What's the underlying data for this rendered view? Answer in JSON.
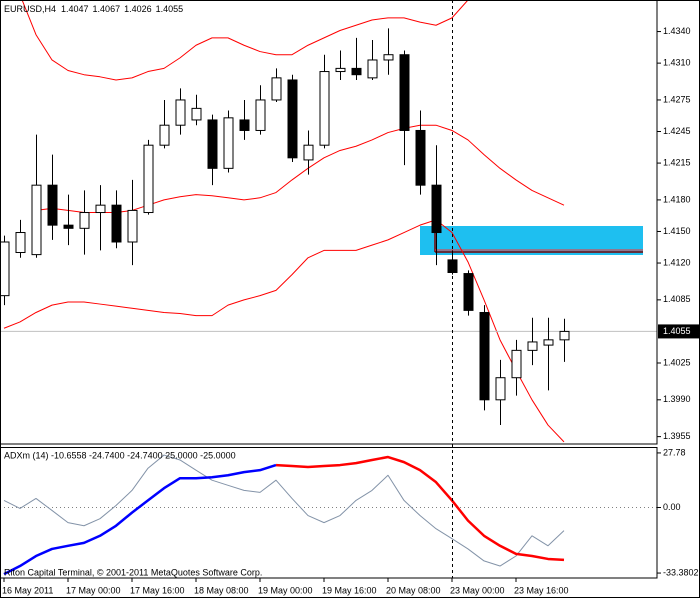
{
  "chart_data": [
    {
      "type": "candlestick",
      "title": "EURUSD,H4",
      "categories": [
        "16 May 2011",
        null,
        null,
        null,
        "17 May 00:00",
        null,
        null,
        null,
        "17 May 16:00",
        null,
        null,
        null,
        "18 May 08:00",
        null,
        null,
        null,
        "19 May 00:00",
        null,
        null,
        null,
        "19 May 16:00",
        null,
        null,
        null,
        "20 May 08:00",
        null,
        null,
        null,
        "23 May 00:00",
        null,
        null,
        null,
        "23 May 16:00",
        null,
        null,
        null
      ],
      "open": [
        1.4089,
        1.413,
        1.4128,
        1.4194,
        1.4156,
        1.4153,
        1.4168,
        1.4175,
        1.414,
        1.4168,
        1.4232,
        1.4251,
        1.4256,
        1.4256,
        1.421,
        1.4256,
        1.4246,
        1.4275,
        1.4294,
        1.4218,
        1.4232,
        1.4302,
        1.4305,
        1.4296,
        1.4313,
        1.4318,
        1.4246,
        1.4194,
        1.4123,
        1.411,
        1.4073,
        1.399,
        1.4011,
        1.4037,
        1.4042,
        1.4047
      ],
      "high": [
        1.4146,
        1.4161,
        1.4242,
        1.4223,
        1.4185,
        1.4189,
        1.4194,
        1.4189,
        1.4199,
        1.4237,
        1.4275,
        1.4286,
        1.428,
        1.4261,
        1.4265,
        1.4275,
        1.4289,
        1.4305,
        1.4299,
        1.4246,
        1.4318,
        1.4322,
        1.4334,
        1.4332,
        1.4343,
        1.4322,
        1.4265,
        1.4232,
        1.4132,
        1.4113,
        1.408,
        1.4028,
        1.4047,
        1.4068,
        1.4068,
        1.4067
      ],
      "low": [
        1.408,
        1.4125,
        1.4125,
        1.4142,
        1.4137,
        1.4128,
        1.4132,
        1.4134,
        1.4118,
        1.4166,
        1.4229,
        1.4242,
        1.4251,
        1.4194,
        1.4206,
        1.4237,
        1.4242,
        1.4273,
        1.4216,
        1.4204,
        1.4229,
        1.4294,
        1.4294,
        1.4294,
        1.4299,
        1.4213,
        1.4185,
        1.4118,
        1.4109,
        1.407,
        1.398,
        1.3966,
        1.3994,
        1.4023,
        1.3999,
        1.4026
      ],
      "close": [
        1.414,
        1.4149,
        1.4194,
        1.4156,
        1.4153,
        1.4168,
        1.4175,
        1.414,
        1.417,
        1.4232,
        1.4251,
        1.4275,
        1.4267,
        1.421,
        1.4258,
        1.4246,
        1.4275,
        1.4296,
        1.422,
        1.4232,
        1.4302,
        1.4305,
        1.4299,
        1.4313,
        1.4318,
        1.4246,
        1.4194,
        1.4149,
        1.4111,
        1.4075,
        1.399,
        1.4011,
        1.4037,
        1.4045,
        1.4047,
        1.4055
      ],
      "up_color": "#ffffff",
      "down_color": "#000000",
      "series": [
        {
          "color": "#ff0000",
          "values": [
            null,
            1.4375,
            1.4337,
            1.4313,
            1.4303,
            1.4299,
            1.4297,
            1.4294,
            1.4296,
            1.4302,
            1.4305,
            1.4315,
            1.4327,
            1.4334,
            1.4334,
            1.4327,
            1.4321,
            1.4318,
            1.4318,
            1.4327,
            1.4334,
            1.4341,
            1.4346,
            1.4351,
            1.4353,
            1.4353,
            1.4349,
            1.4346,
            1.4353,
            1.437,
            1.4389,
            null,
            null,
            null,
            null,
            null
          ]
        },
        {
          "color": "#ff0000",
          "values": [
            null,
            null,
            1.417,
            1.4172,
            1.417,
            1.4168,
            1.4168,
            1.4168,
            1.417,
            1.4175,
            1.418,
            1.4183,
            1.4185,
            1.4184,
            1.4182,
            1.418,
            1.4182,
            1.4187,
            1.4199,
            1.421,
            1.422,
            1.4227,
            1.4231,
            1.4237,
            1.4244,
            1.4248,
            1.4251,
            1.4251,
            1.4246,
            1.4237,
            1.4223,
            1.421,
            1.4199,
            1.4189,
            1.4182,
            1.4175
          ]
        },
        {
          "color": "#ff0000",
          "values": [
            1.4058,
            1.4064,
            1.4073,
            1.408,
            1.4083,
            1.4083,
            1.4081,
            1.4079,
            1.4077,
            1.4075,
            1.4073,
            1.4072,
            1.407,
            1.407,
            1.408,
            1.4085,
            1.4089,
            1.4094,
            1.4109,
            1.4125,
            1.4132,
            1.4132,
            1.4132,
            1.4137,
            1.4142,
            1.4149,
            1.4156,
            1.4161,
            1.4149,
            1.4121,
            1.4085,
            1.4047,
            1.4018,
            1.399,
            1.3966,
            1.395
          ]
        }
      ],
      "ylim": [
        1.3948,
        1.437
      ],
      "yticks": [
        {
          "value": 1.434,
          "label": "1.4340"
        },
        {
          "value": 1.431,
          "label": "1.4310"
        },
        1.4275,
        1.4245,
        1.4215,
        {
          "value": 1.418,
          "label": "1.4180"
        },
        {
          "value": 1.415,
          "label": "1.4150"
        },
        {
          "value": 1.412,
          "label": "1.4120"
        },
        1.4085,
        1.4025,
        {
          "value": 1.399,
          "label": "1.3990"
        },
        1.3955
      ],
      "grid": false
    },
    {
      "type": "line",
      "title": "ADXm (14) -10.6558 -24.7400 -24.7400 25.0000 -25.0000",
      "annotation": "Riton Capital Terminal, © 2001-2011 MetaQuotes Software Corp.",
      "series": [
        {
          "color": "#8393a8",
          "values": [
            3.6,
            -0.5,
            4.6,
            -1.5,
            -7.7,
            -9.3,
            -5.7,
            1.0,
            8.7,
            20.0,
            26.7,
            24.2,
            19.0,
            13.9,
            11.3,
            8.7,
            7.7,
            13.9,
            4.6,
            -4.1,
            -7.7,
            -4.1,
            3.6,
            8.7,
            16.4,
            3.6,
            -4.1,
            -10.8,
            -15.9,
            -21.1,
            -27.2,
            -29.8,
            -24.7,
            -14.4,
            -19.5,
            -11.8
          ]
        },
        {
          "color": "#0000ff",
          "values": [
            -33.9,
            -29.8,
            -24.7,
            -21.1,
            -19.5,
            -18.0,
            -14.4,
            -9.3,
            -2.6,
            3.6,
            9.8,
            14.9,
            14.9,
            15.4,
            16.4,
            18.0,
            19.0,
            21.6,
            null,
            null,
            null,
            null,
            null,
            null,
            null,
            null,
            null,
            null,
            null,
            null,
            null,
            null,
            null,
            null,
            null,
            null
          ]
        },
        {
          "color": "#ff0000",
          "values": [
            null,
            null,
            null,
            null,
            null,
            null,
            null,
            null,
            null,
            null,
            null,
            null,
            null,
            null,
            null,
            null,
            null,
            21.6,
            21.1,
            20.6,
            21.1,
            21.6,
            22.6,
            24.2,
            25.7,
            23.1,
            19.0,
            12.9,
            3.6,
            -6.7,
            -14.4,
            -19.5,
            -23.6,
            -24.7,
            -26.2,
            -26.7
          ]
        }
      ],
      "ylim": [
        -35.9,
        30.8
      ],
      "yticks": [
        27.78,
        {
          "value": 0,
          "label": "0.00"
        },
        -33.3802
      ],
      "grid": false
    }
  ]
}
